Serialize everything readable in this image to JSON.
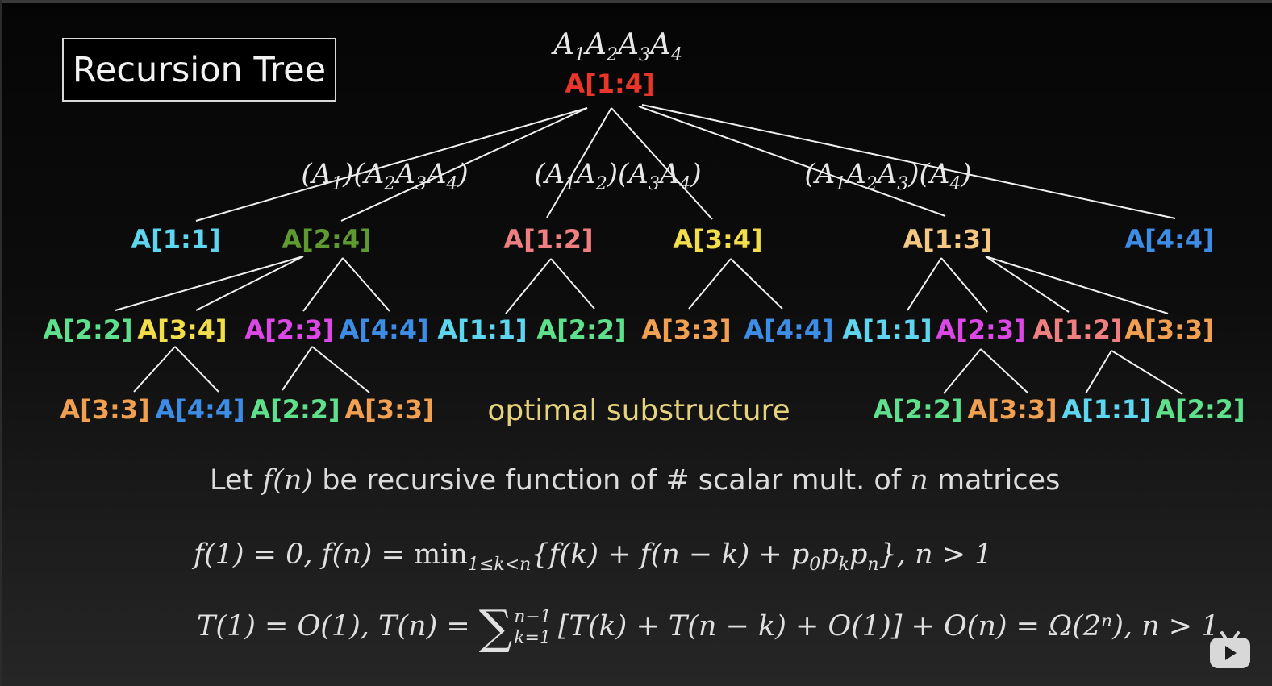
{
  "title": "Recursion Tree",
  "root": {
    "matrices": "A1A2A3A4",
    "label": "A[1:4]",
    "color": "#e8362a"
  },
  "splits": [
    "(A1)(A2A3A4)",
    "(A1A2)(A3A4)",
    "(A1A2A3)(A4)"
  ],
  "level1": [
    {
      "label": "A[1:1]",
      "color": "#5fd6ef"
    },
    {
      "label": "A[2:4]",
      "color": "#5f9a31"
    },
    {
      "label": "A[1:2]",
      "color": "#ef7f80"
    },
    {
      "label": "A[3:4]",
      "color": "#f2dd4a"
    },
    {
      "label": "A[1:3]",
      "color": "#f4c882"
    },
    {
      "label": "A[4:4]",
      "color": "#3d8ce6"
    }
  ],
  "level2": [
    {
      "label": "A[2:2]",
      "color": "#5ee08d"
    },
    {
      "label": "A[3:4]",
      "color": "#f2dd4a"
    },
    {
      "label": "A[2:3]",
      "color": "#dc48e6"
    },
    {
      "label": "A[4:4]",
      "color": "#3d8ce6"
    },
    {
      "label": "A[1:1]",
      "color": "#5fd6ef"
    },
    {
      "label": "A[2:2]",
      "color": "#5ee08d"
    },
    {
      "label": "A[3:3]",
      "color": "#f0a050"
    },
    {
      "label": "A[4:4]",
      "color": "#3d8ce6"
    },
    {
      "label": "A[1:1]",
      "color": "#5fd6ef"
    },
    {
      "label": "A[2:3]",
      "color": "#dc48e6"
    },
    {
      "label": "A[1:2]",
      "color": "#ef7f80"
    },
    {
      "label": "A[3:3]",
      "color": "#f0a050"
    }
  ],
  "level3": [
    {
      "label": "A[3:3]",
      "color": "#f0a050"
    },
    {
      "label": "A[4:4]",
      "color": "#3d8ce6"
    },
    {
      "label": "A[2:2]",
      "color": "#5ee08d"
    },
    {
      "label": "A[3:3]",
      "color": "#f0a050"
    },
    {
      "label": "A[2:2]",
      "color": "#5ee08d"
    },
    {
      "label": "A[3:3]",
      "color": "#f0a050"
    },
    {
      "label": "A[1:1]",
      "color": "#5fd6ef"
    },
    {
      "label": "A[2:2]",
      "color": "#5ee08d"
    }
  ],
  "note": "optimal substructure",
  "definition": {
    "prefix": "Let ",
    "fn": "f(n)",
    "middle": " be recursive function of # scalar mult. of ",
    "n": "n",
    "suffix": " matrices"
  },
  "formula1": "f(1) = 0, f(n) = min1≤k<n{f(k) + f(n − k) + p0pkpn}, n > 1",
  "formula2": {
    "lhs": "T(1) = O(1), T(n) = ",
    "sum_upper": "n−1",
    "sum_lower": "k=1",
    "rhs": "[T(k) + T(n − k) + O(1)] + O(n) = Ω(2ⁿ), n > 1"
  },
  "edge_color": "#f0f0f0"
}
